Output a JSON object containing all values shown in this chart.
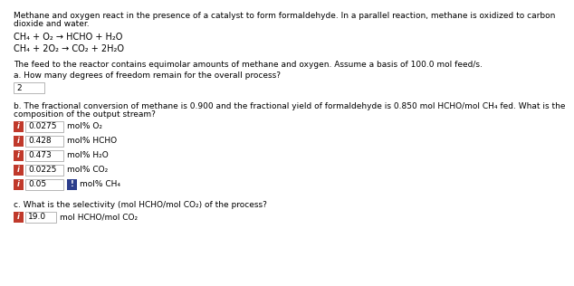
{
  "title_line1": "Methane and oxygen react in the presence of a catalyst to form formaldehyde. In a parallel reaction, methane is oxidized to carbon",
  "title_line2": "dioxide and water.",
  "eq1": "CH₄ + O₂ → HCHO + H₂O",
  "eq2": "CH₄ + 2O₂ → CO₂ + 2H₂O",
  "feed_text": "The feed to the reactor contains equimolar amounts of methane and oxygen. Assume a basis of 100.0 mol feed/s.",
  "part_a_label": "a. How many degrees of freedom remain for the overall process?",
  "part_a_value": "2",
  "part_b_line1": "b. The fractional conversion of methane is 0.900 and the fractional yield of formaldehyde is 0.850 mol HCHO/mol CH₄ fed. What is the",
  "part_b_line2": "composition of the output stream?",
  "part_b_rows": [
    {
      "value": "0.0275",
      "unit": "mol% O₂",
      "warning": false
    },
    {
      "value": "0.428",
      "unit": "mol% HCHO",
      "warning": false
    },
    {
      "value": "0.473",
      "unit": "mol% H₂O",
      "warning": false
    },
    {
      "value": "0.0225",
      "unit": "mol% CO₂",
      "warning": false
    },
    {
      "value": "0.05",
      "unit": "mol% CH₄",
      "warning": true
    }
  ],
  "part_c_label": "c. What is the selectivity (mol HCHO/mol CO₂) of the process?",
  "part_c_value": "19.0",
  "part_c_unit": "mol HCHO/mol CO₂",
  "bg_color": "#ffffff",
  "text_color": "#000000",
  "box_border_color": "#aaaaaa",
  "icon_color": "#c0392b",
  "icon_warn_color": "#2c3e8c",
  "input_bg_color": "#ffffff",
  "font_size": 6.5,
  "eq_font_size": 7.0
}
